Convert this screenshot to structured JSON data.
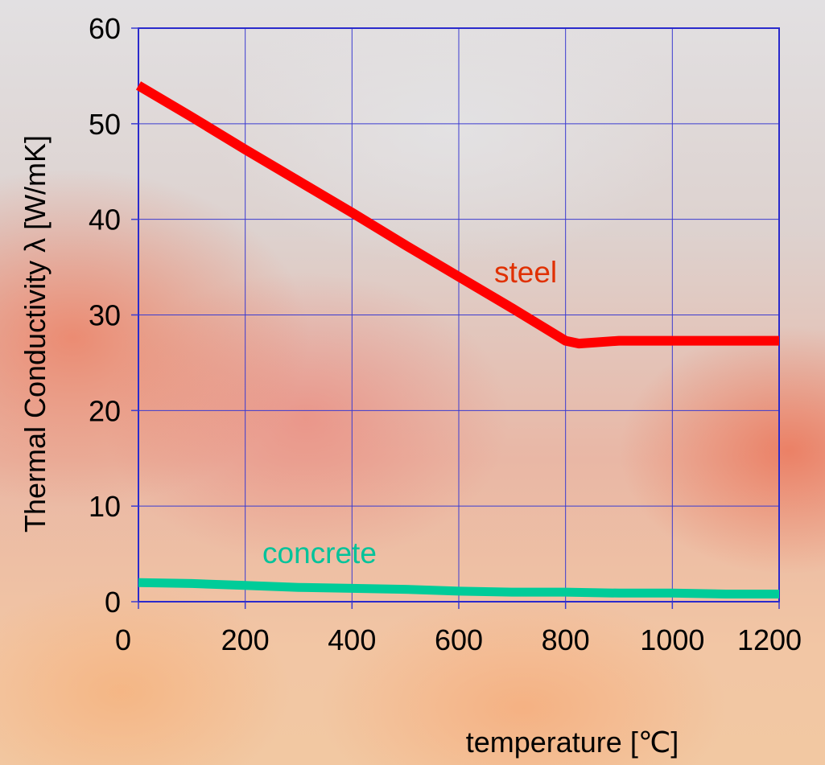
{
  "chart_data": {
    "type": "line",
    "xlabel": "temperature [℃]",
    "ylabel": "Thermal Conductivity  λ  [W/mK]",
    "xlim": [
      0,
      1200
    ],
    "ylim": [
      0,
      60
    ],
    "x_ticks": [
      "0",
      "200",
      "400",
      "600",
      "800",
      "1000",
      "1200"
    ],
    "y_ticks": [
      "0",
      "10",
      "20",
      "30",
      "40",
      "50",
      "60"
    ],
    "grid": true,
    "series": [
      {
        "name": "steel",
        "color": "#ff0000",
        "label_color": "#e03000",
        "x": [
          0,
          100,
          200,
          300,
          400,
          500,
          600,
          700,
          800,
          825,
          900,
          1000,
          1100,
          1200
        ],
        "y": [
          54,
          50.7,
          47.3,
          44.0,
          40.7,
          37.3,
          34.0,
          30.7,
          27.3,
          27.0,
          27.3,
          27.3,
          27.3,
          27.3
        ]
      },
      {
        "name": "concrete",
        "color": "#00cc99",
        "label_color": "#00c39a",
        "x": [
          0,
          100,
          200,
          300,
          400,
          500,
          600,
          700,
          800,
          900,
          1000,
          1100,
          1200
        ],
        "y": [
          2.0,
          1.9,
          1.7,
          1.5,
          1.4,
          1.3,
          1.1,
          1.0,
          1.0,
          0.9,
          0.9,
          0.8,
          0.8
        ]
      }
    ]
  }
}
